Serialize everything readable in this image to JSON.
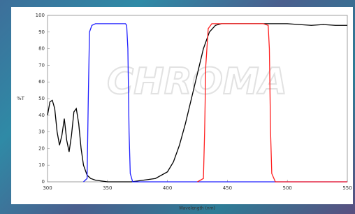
{
  "chart_data": {
    "type": "line",
    "title": "",
    "y_label": "%T",
    "x_label": "Wavelength (nm)",
    "watermark": "CHROMA",
    "xlim": [
      300,
      550
    ],
    "xticks": [
      300,
      350,
      400,
      450,
      500,
      550
    ],
    "ylim": [
      0,
      100
    ],
    "yticks": [
      0,
      10,
      20,
      30,
      40,
      50,
      60,
      70,
      80,
      90,
      100
    ],
    "grid": false,
    "series": [
      {
        "color": "#000000",
        "x": [
          300,
          302,
          304,
          306,
          308,
          310,
          312,
          314,
          316,
          318,
          320,
          322,
          324,
          326,
          328,
          330,
          333,
          336,
          340,
          350,
          360,
          370,
          380,
          390,
          400,
          405,
          410,
          415,
          420,
          425,
          430,
          435,
          440,
          445,
          450,
          460,
          470,
          480,
          490,
          500,
          510,
          520,
          530,
          540,
          550
        ],
        "values": [
          40,
          48,
          49,
          44,
          30,
          22,
          28,
          38,
          25,
          18,
          28,
          42,
          44,
          35,
          20,
          10,
          4,
          2,
          1,
          0,
          0,
          0,
          1,
          2,
          6,
          12,
          22,
          35,
          50,
          65,
          80,
          90,
          94,
          95,
          95,
          95,
          95,
          95,
          95,
          95,
          94.5,
          94,
          94.5,
          94,
          94
        ]
      },
      {
        "color": "#2020ff",
        "x": [
          330,
          333,
          334,
          335,
          337,
          340,
          350,
          360,
          365,
          366,
          367,
          368,
          369,
          371,
          400,
          450,
          500,
          550
        ],
        "values": [
          0,
          2,
          50,
          90,
          94,
          95,
          95,
          95,
          95,
          94,
          80,
          30,
          5,
          0,
          0,
          0,
          0,
          0
        ]
      },
      {
        "color": "#ff2020",
        "x": [
          425,
          430,
          431,
          432,
          434,
          437,
          450,
          480,
          484,
          485,
          486,
          487,
          490,
          550
        ],
        "values": [
          0,
          2,
          30,
          70,
          92,
          95,
          95,
          95,
          94,
          80,
          30,
          5,
          0,
          0
        ]
      }
    ]
  }
}
